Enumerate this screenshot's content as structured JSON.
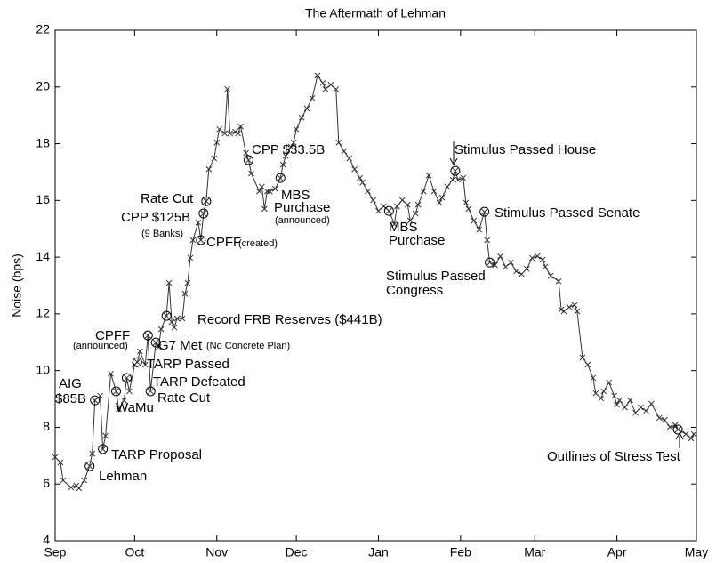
{
  "chart_data": {
    "type": "line",
    "title": "The Aftermath of Lehman",
    "y_label": "Noise (bps)",
    "xlim": [
      0,
      242
    ],
    "xticks": [
      {
        "value": 0,
        "label": "Sep"
      },
      {
        "value": 30,
        "label": "Oct"
      },
      {
        "value": 61,
        "label": "Nov"
      },
      {
        "value": 91,
        "label": "Dec"
      },
      {
        "value": 122,
        "label": "Jan"
      },
      {
        "value": 153,
        "label": "Feb"
      },
      {
        "value": 181,
        "label": "Mar"
      },
      {
        "value": 212,
        "label": "Apr"
      },
      {
        "value": 242,
        "label": "May"
      }
    ],
    "ylim": [
      4,
      22
    ],
    "yticks": [
      4,
      6,
      8,
      10,
      12,
      14,
      16,
      18,
      20,
      22
    ],
    "color": "#333333",
    "x": [
      0,
      2,
      3,
      6,
      8,
      9,
      11,
      13,
      14,
      15,
      17,
      18,
      19,
      21,
      23,
      24,
      26,
      27,
      28,
      30,
      31,
      32,
      34,
      35,
      36,
      38,
      39,
      40,
      42,
      43,
      44,
      45,
      46,
      48,
      49,
      50,
      51,
      52,
      54,
      55,
      56,
      57,
      58,
      60,
      61,
      62,
      64,
      65,
      66,
      68,
      69,
      70,
      72,
      73,
      74,
      77,
      78,
      79,
      80,
      81,
      83,
      85,
      86,
      87,
      89,
      90,
      91,
      93,
      95,
      97,
      99,
      101,
      102,
      104,
      106,
      107,
      109,
      111,
      113,
      115,
      116,
      118,
      120,
      122,
      124,
      126,
      128,
      129,
      131,
      133,
      134,
      136,
      137,
      139,
      141,
      143,
      145,
      146,
      148,
      150,
      151,
      152,
      154,
      155,
      156,
      158,
      160,
      162,
      163,
      164,
      166,
      168,
      170,
      172,
      174,
      176,
      178,
      180,
      182,
      184,
      185,
      187,
      190,
      191,
      192,
      194,
      196,
      197,
      199,
      201,
      203,
      204,
      206,
      207,
      209,
      211,
      212,
      213,
      215,
      217,
      219,
      221,
      223,
      225,
      228,
      230,
      232,
      234,
      235,
      238,
      240,
      241
    ],
    "values": [
      6.95,
      6.76,
      6.13,
      5.88,
      5.94,
      5.85,
      6.13,
      6.63,
      7.07,
      8.95,
      9.11,
      7.23,
      7.7,
      9.89,
      9.27,
      8.64,
      8.95,
      9.74,
      9.27,
      10.21,
      10.3,
      10.68,
      10.21,
      11.24,
      9.27,
      10.99,
      10.83,
      11.46,
      11.93,
      13.09,
      11.71,
      11.52,
      11.84,
      11.84,
      12.71,
      13.09,
      13.97,
      14.6,
      15.22,
      14.6,
      15.54,
      15.97,
      17.1,
      17.48,
      18.04,
      18.51,
      18.36,
      19.92,
      18.36,
      18.42,
      18.36,
      18.61,
      17.67,
      17.42,
      16.95,
      16.32,
      16.48,
      15.7,
      16.32,
      16.32,
      16.41,
      16.79,
      17.26,
      17.57,
      17.89,
      18.04,
      18.51,
      18.92,
      19.24,
      19.61,
      20.4,
      20.14,
      19.92,
      20.08,
      19.92,
      18.04,
      17.73,
      17.48,
      17.1,
      16.79,
      16.63,
      16.32,
      16.01,
      15.63,
      15.79,
      15.63,
      15.16,
      15.79,
      16.01,
      15.85,
      15.29,
      15.54,
      15.85,
      16.32,
      16.88,
      16.32,
      15.92,
      16.1,
      16.48,
      16.73,
      17.04,
      16.73,
      16.79,
      15.92,
      15.7,
      15.29,
      14.97,
      15.6,
      14.6,
      13.81,
      13.72,
      14.03,
      13.66,
      13.81,
      13.5,
      13.4,
      13.59,
      13.97,
      14.03,
      13.91,
      13.66,
      13.34,
      13.15,
      12.15,
      12.09,
      12.24,
      12.31,
      12.09,
      10.46,
      10.21,
      9.74,
      9.2,
      9.02,
      9.27,
      9.58,
      9.11,
      8.8,
      8.95,
      8.7,
      8.95,
      8.51,
      8.7,
      8.58,
      8.83,
      8.33,
      8.26,
      8.01,
      8.08,
      7.92,
      7.76,
      7.61,
      7.76
    ],
    "annotations": [
      "AIG",
      "$85B",
      "Lehman",
      "TARP Proposal",
      "WaMu",
      "CPFF",
      "(announced)",
      "TARP Passed",
      "TARP Defeated",
      "Rate Cut",
      "G7 Met",
      "(No Concrete Plan)",
      "Record FRB Reserves ($441B)",
      "Rate Cut",
      "CPP $125B",
      "(9 Banks)",
      "CPFF",
      "(created)",
      "CPP $33.5B",
      "MBS",
      "Purchase",
      "(announced)",
      "MBS",
      "Purchase",
      "Stimulus Passed House",
      "Stimulus Passed Senate",
      "Stimulus Passed",
      "Congress",
      "Outlines of Stress Test"
    ]
  }
}
